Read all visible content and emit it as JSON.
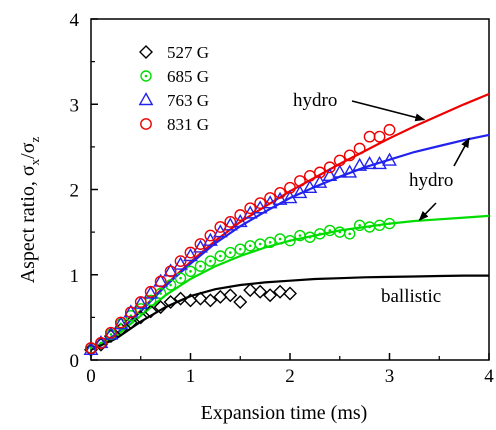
{
  "chart_data": {
    "type": "scatter",
    "xlabel": "Expansion time (ms)",
    "ylabel": {
      "prefix": "Aspect ratio, ",
      "sigma": "σ",
      "sub_x": "x",
      "slash": "/",
      "sub_z": "z"
    },
    "xlim": [
      0,
      4
    ],
    "ylim": [
      0,
      4
    ],
    "xticks": [
      "0",
      "1",
      "2",
      "3",
      "4"
    ],
    "yticks": [
      "0",
      "1",
      "2",
      "3",
      "4"
    ],
    "grid": false,
    "legend_position": "top-left",
    "series": [
      {
        "name": "527 G",
        "marker": "diamond",
        "color": "#000000",
        "x": [
          0.0,
          0.1,
          0.2,
          0.3,
          0.4,
          0.5,
          0.6,
          0.7,
          0.8,
          0.9,
          1.0,
          1.1,
          1.2,
          1.3,
          1.4,
          1.5,
          1.6,
          1.7,
          1.8,
          1.9,
          2.0
        ],
        "y": [
          0.12,
          0.18,
          0.28,
          0.36,
          0.44,
          0.5,
          0.57,
          0.62,
          0.68,
          0.72,
          0.7,
          0.72,
          0.7,
          0.74,
          0.76,
          0.68,
          0.82,
          0.8,
          0.76,
          0.8,
          0.78
        ]
      },
      {
        "name": "685 G",
        "marker": "circle-dot",
        "color": "#00dd00",
        "x": [
          0.0,
          0.1,
          0.2,
          0.3,
          0.4,
          0.5,
          0.6,
          0.7,
          0.8,
          0.9,
          1.0,
          1.1,
          1.2,
          1.3,
          1.4,
          1.5,
          1.6,
          1.7,
          1.8,
          1.9,
          2.0,
          2.1,
          2.2,
          2.3,
          2.4,
          2.5,
          2.6,
          2.7,
          2.8,
          2.9,
          3.0
        ],
        "y": [
          0.14,
          0.2,
          0.3,
          0.42,
          0.52,
          0.6,
          0.7,
          0.78,
          0.88,
          0.96,
          1.04,
          1.1,
          1.16,
          1.22,
          1.26,
          1.3,
          1.34,
          1.36,
          1.38,
          1.42,
          1.4,
          1.46,
          1.44,
          1.48,
          1.52,
          1.5,
          1.48,
          1.58,
          1.56,
          1.58,
          1.6
        ]
      },
      {
        "name": "763 G",
        "marker": "triangle",
        "color": "#2222ee",
        "x": [
          0.0,
          0.1,
          0.2,
          0.3,
          0.4,
          0.5,
          0.6,
          0.7,
          0.8,
          0.9,
          1.0,
          1.1,
          1.2,
          1.3,
          1.4,
          1.5,
          1.6,
          1.7,
          1.8,
          1.9,
          2.0,
          2.1,
          2.2,
          2.3,
          2.4,
          2.5,
          2.6,
          2.7,
          2.8,
          2.9,
          3.0
        ],
        "y": [
          0.12,
          0.2,
          0.3,
          0.42,
          0.56,
          0.66,
          0.78,
          0.92,
          1.04,
          1.12,
          1.22,
          1.32,
          1.4,
          1.5,
          1.58,
          1.62,
          1.72,
          1.78,
          1.84,
          1.88,
          1.9,
          1.96,
          2.02,
          2.08,
          2.16,
          2.2,
          2.2,
          2.28,
          2.3,
          2.3,
          2.34
        ]
      },
      {
        "name": "831 G",
        "marker": "circle",
        "color": "#ee0000",
        "x": [
          0.0,
          0.1,
          0.2,
          0.3,
          0.4,
          0.5,
          0.6,
          0.7,
          0.8,
          0.9,
          1.0,
          1.1,
          1.2,
          1.3,
          1.4,
          1.5,
          1.6,
          1.7,
          1.8,
          1.9,
          2.0,
          2.1,
          2.2,
          2.3,
          2.4,
          2.5,
          2.6,
          2.7,
          2.8,
          2.9,
          3.0
        ],
        "y": [
          0.14,
          0.2,
          0.32,
          0.44,
          0.56,
          0.68,
          0.8,
          0.92,
          1.04,
          1.16,
          1.26,
          1.36,
          1.46,
          1.56,
          1.62,
          1.7,
          1.78,
          1.84,
          1.9,
          1.96,
          2.02,
          2.1,
          2.16,
          2.2,
          2.26,
          2.34,
          2.4,
          2.48,
          2.62,
          2.62,
          2.7
        ]
      }
    ],
    "curves": [
      {
        "label": "hydro",
        "color": "#ee0000",
        "x": [
          0,
          0.25,
          0.5,
          0.75,
          1.0,
          1.25,
          1.5,
          1.75,
          2.0,
          2.25,
          2.5,
          2.75,
          3.0,
          3.25,
          3.5,
          3.75,
          4.0
        ],
        "y": [
          0.12,
          0.3,
          0.58,
          0.88,
          1.15,
          1.4,
          1.62,
          1.8,
          1.98,
          2.14,
          2.3,
          2.45,
          2.6,
          2.74,
          2.87,
          3.0,
          3.12
        ]
      },
      {
        "label": "hydro",
        "color": "#2222ee",
        "x": [
          0,
          0.25,
          0.5,
          0.75,
          1.0,
          1.25,
          1.5,
          1.75,
          2.0,
          2.25,
          2.5,
          2.75,
          3.0,
          3.25,
          3.5,
          3.75,
          4.0
        ],
        "y": [
          0.12,
          0.3,
          0.57,
          0.87,
          1.13,
          1.37,
          1.57,
          1.74,
          1.9,
          2.03,
          2.15,
          2.26,
          2.35,
          2.44,
          2.51,
          2.58,
          2.64
        ]
      },
      {
        "label": "",
        "color": "#00dd00",
        "x": [
          0,
          0.25,
          0.5,
          0.75,
          1.0,
          1.25,
          1.5,
          1.75,
          2.0,
          2.25,
          2.5,
          2.75,
          3.0,
          3.25,
          3.5,
          3.75,
          4.0
        ],
        "y": [
          0.12,
          0.28,
          0.52,
          0.76,
          0.95,
          1.1,
          1.22,
          1.32,
          1.4,
          1.46,
          1.52,
          1.56,
          1.6,
          1.63,
          1.65,
          1.67,
          1.69
        ]
      },
      {
        "label": "ballistic",
        "color": "#000000",
        "x": [
          0,
          0.25,
          0.5,
          0.75,
          1.0,
          1.25,
          1.5,
          1.75,
          2.0,
          2.25,
          2.5,
          2.75,
          3.0,
          3.25,
          3.5,
          3.75,
          4.0
        ],
        "y": [
          0.12,
          0.25,
          0.45,
          0.62,
          0.75,
          0.83,
          0.88,
          0.91,
          0.93,
          0.95,
          0.96,
          0.97,
          0.975,
          0.98,
          0.985,
          0.99,
          0.99
        ]
      }
    ],
    "annotations": [
      {
        "text": "hydro",
        "arrow_to": [
          3.35,
          2.82
        ]
      },
      {
        "text": "hydro",
        "arrow_to": [
          3.8,
          2.6
        ]
      },
      {
        "text": "",
        "arrow_to": [
          3.3,
          1.64
        ]
      },
      {
        "text": "ballistic"
      }
    ]
  }
}
